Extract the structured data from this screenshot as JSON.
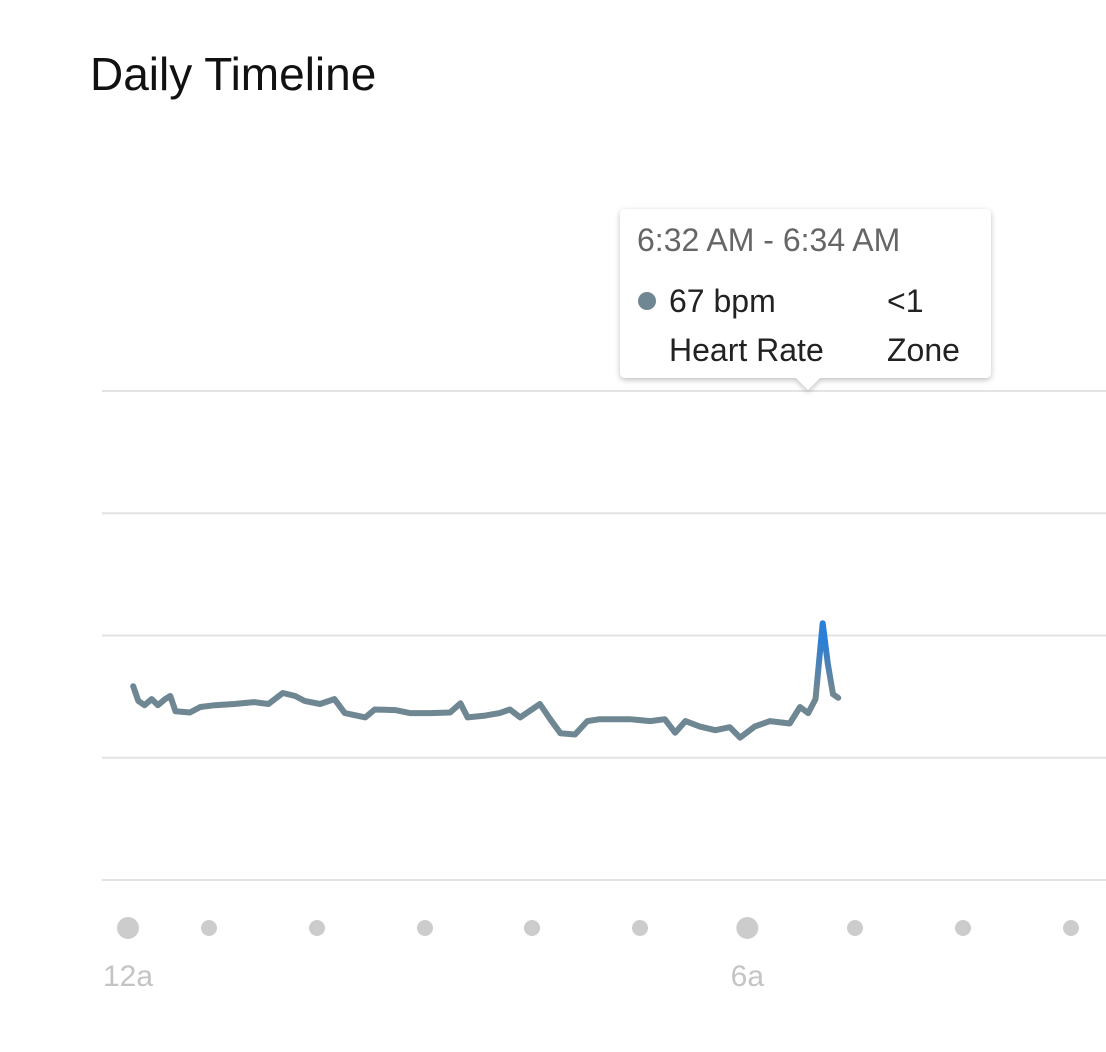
{
  "title": "Daily Timeline",
  "chart_data": {
    "type": "line",
    "x": [
      0.05,
      0.1,
      0.16,
      0.23,
      0.29,
      0.36,
      0.41,
      0.46,
      0.6,
      0.7,
      0.84,
      1.03,
      1.22,
      1.36,
      1.5,
      1.62,
      1.71,
      1.86,
      2.0,
      2.1,
      2.3,
      2.39,
      2.59,
      2.73,
      2.93,
      3.12,
      3.22,
      3.29,
      3.46,
      3.6,
      3.7,
      3.8,
      3.99,
      4.09,
      4.19,
      4.33,
      4.45,
      4.57,
      4.86,
      5.06,
      5.2,
      5.3,
      5.4,
      5.54,
      5.69,
      5.83,
      5.93,
      6.07,
      6.22,
      6.41,
      6.51,
      6.59,
      6.66,
      6.73,
      6.78,
      6.83,
      6.88
    ],
    "values": [
      71.7,
      69.3,
      68.6,
      69.6,
      68.6,
      69.6,
      70.1,
      67.6,
      67.4,
      68.3,
      68.6,
      68.8,
      69.1,
      68.8,
      70.6,
      70.1,
      69.3,
      68.8,
      69.6,
      67.3,
      66.6,
      67.9,
      67.8,
      67.3,
      67.3,
      67.4,
      68.9,
      66.6,
      66.9,
      67.3,
      67.9,
      66.6,
      68.8,
      66.3,
      64.0,
      63.8,
      66.0,
      66.3,
      66.3,
      66.0,
      66.3,
      64.1,
      66.0,
      65.1,
      64.5,
      65.0,
      63.3,
      65.1,
      66.0,
      65.6,
      68.3,
      67.3,
      69.6,
      82.0,
      75.4,
      70.4,
      69.8
    ],
    "color": "#6f8693",
    "peak_color": "#2a7fd6",
    "xlim": [
      0,
      9
    ],
    "xticks": [
      {
        "value": 0,
        "label": "12a"
      },
      {
        "value": 6,
        "label": "6a"
      }
    ],
    "ylim": [
      40,
      120
    ],
    "yticks": [
      40,
      60,
      80,
      100,
      120
    ],
    "grid": true,
    "tooltip": {
      "time": "6:32 AM - 6:34 AM",
      "rows": [
        [
          "67 bpm",
          "<1"
        ],
        [
          "Heart Rate",
          "Zone"
        ]
      ]
    }
  }
}
